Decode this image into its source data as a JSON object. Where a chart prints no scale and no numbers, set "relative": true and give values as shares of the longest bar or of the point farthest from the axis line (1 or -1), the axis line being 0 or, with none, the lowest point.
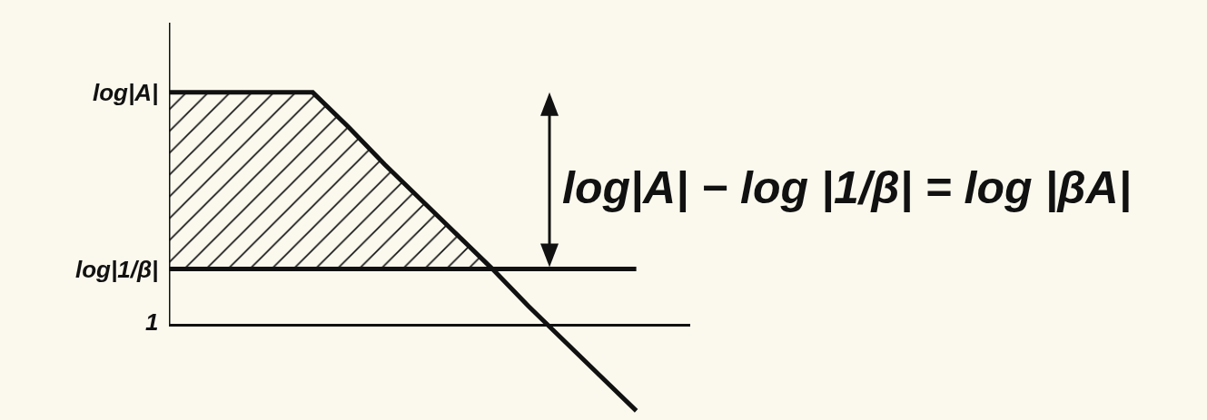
{
  "chart_data": {
    "type": "line",
    "relative": true,
    "categories": [
      null,
      null,
      null,
      null,
      null,
      null,
      null,
      null,
      null,
      null,
      null,
      null,
      null,
      null
    ],
    "series": [
      {
        "name": "log|A|",
        "color": "#111111",
        "values": [
          1,
          1,
          1,
          1,
          1,
          0.85,
          0.69,
          0.54,
          0.39,
          0.24,
          0.08,
          -0.07,
          -0.22,
          -0.37
        ],
        "lower": [
          0.24,
          0.24,
          0.24,
          0.24,
          0.24,
          0.24,
          0.24,
          0.24,
          0.24,
          0.24,
          null,
          null,
          null,
          null
        ],
        "upper": [
          1,
          1,
          1,
          1,
          1,
          0.85,
          0.69,
          0.54,
          0.39,
          0.24,
          null,
          null,
          null,
          null
        ]
      },
      {
        "name": "log|1/β|",
        "color": "#111111",
        "values": [
          0.24,
          0.24,
          0.24,
          0.24,
          0.24,
          0.24,
          0.24,
          0.24,
          0.24,
          0.24,
          0.24,
          0.24,
          0.24,
          0.24
        ]
      }
    ],
    "annotations": [
      "1",
      "log|A| − log |1/β| = log |βA|"
    ]
  }
}
